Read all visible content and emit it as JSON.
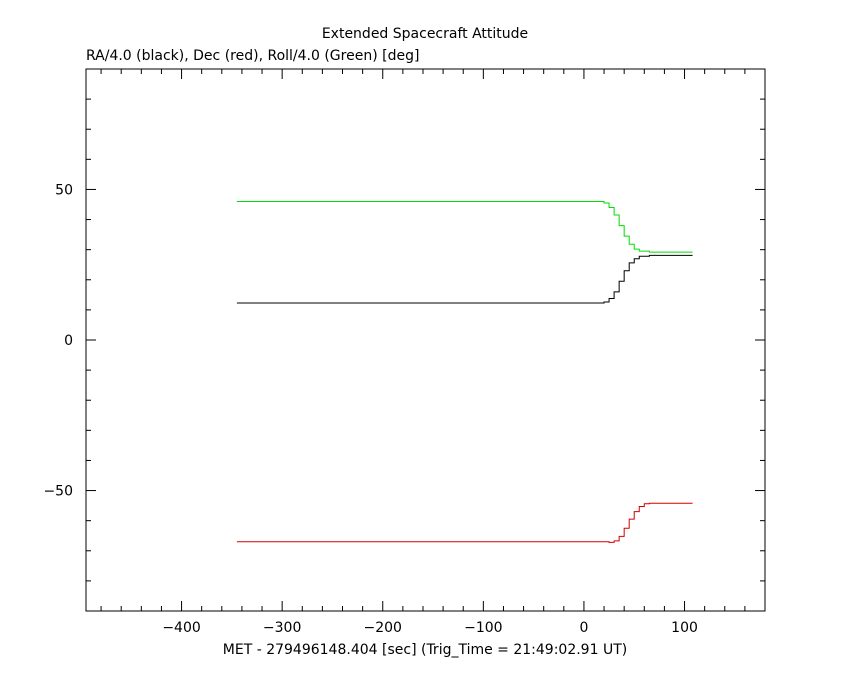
{
  "chart_data": {
    "type": "line",
    "title": "Extended Spacecraft Attitude",
    "ylabel": "RA/4.0 (black), Dec (red), Roll/4.0 (Green) [deg]",
    "xlabel": "MET - 279496148.404 [sec] (Trig_Time = 21:49:02.91 UT)",
    "xlim": [
      -495,
      180
    ],
    "ylim": [
      -90,
      90
    ],
    "x_ticks": [
      -400,
      -300,
      -200,
      -100,
      0,
      100
    ],
    "x_tick_labels": [
      "−400",
      "−300",
      "−200",
      "−100",
      "0",
      "100"
    ],
    "y_ticks": [
      -50,
      0,
      50
    ],
    "y_tick_labels": [
      "−50",
      "0",
      "50"
    ],
    "grid": false,
    "series": [
      {
        "name": "RA/4.0",
        "color": "#000000",
        "points": [
          [
            -345,
            12.3
          ],
          [
            15,
            12.3
          ],
          [
            20,
            12.6
          ],
          [
            25,
            13.8
          ],
          [
            30,
            16
          ],
          [
            35,
            19.5
          ],
          [
            40,
            23
          ],
          [
            45,
            25.6
          ],
          [
            50,
            27
          ],
          [
            55,
            27.8
          ],
          [
            65,
            28.1
          ],
          [
            108,
            28.1
          ]
        ]
      },
      {
        "name": "Dec",
        "color": "#d40000",
        "points": [
          [
            -345,
            -67
          ],
          [
            15,
            -67
          ],
          [
            25,
            -67.2
          ],
          [
            30,
            -66.7
          ],
          [
            35,
            -65.2
          ],
          [
            40,
            -62.5
          ],
          [
            45,
            -59.5
          ],
          [
            50,
            -57
          ],
          [
            55,
            -55.3
          ],
          [
            60,
            -54.4
          ],
          [
            65,
            -54.2
          ],
          [
            108,
            -54.2
          ]
        ]
      },
      {
        "name": "Roll/4.0",
        "color": "#00dd00",
        "points": [
          [
            -345,
            46
          ],
          [
            15,
            46
          ],
          [
            20,
            45.5
          ],
          [
            25,
            44
          ],
          [
            30,
            41.5
          ],
          [
            35,
            38
          ],
          [
            40,
            34.5
          ],
          [
            45,
            31.8
          ],
          [
            50,
            30.2
          ],
          [
            55,
            29.5
          ],
          [
            65,
            29.2
          ],
          [
            108,
            29.2
          ]
        ]
      }
    ]
  }
}
